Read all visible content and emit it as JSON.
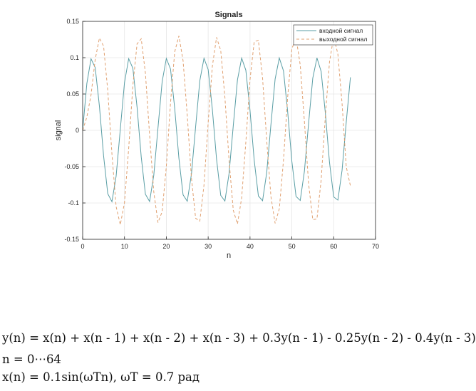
{
  "chart_data": {
    "type": "line",
    "title": "Signals",
    "xlabel": "n",
    "ylabel": "signal",
    "xlim": [
      0,
      70
    ],
    "ylim": [
      -0.15,
      0.15
    ],
    "xticks": [
      0,
      10,
      20,
      30,
      40,
      50,
      60,
      70
    ],
    "xtick_labels": [
      "0",
      "10",
      "20",
      "30",
      "40",
      "50",
      "60",
      "70"
    ],
    "yticks": [
      0.15,
      0.1,
      0.05,
      0,
      -0.05,
      -0.1,
      -0.15
    ],
    "ytick_labels": [
      "0.15",
      "0.1",
      "0.05",
      "0",
      "-0.05",
      "-0.1",
      "-0.15"
    ],
    "grid": true,
    "legend_position": "top-right",
    "x": [
      0,
      1,
      2,
      3,
      4,
      5,
      6,
      7,
      8,
      9,
      10,
      11,
      12,
      13,
      14,
      15,
      16,
      17,
      18,
      19,
      20,
      21,
      22,
      23,
      24,
      25,
      26,
      27,
      28,
      29,
      30,
      31,
      32,
      33,
      34,
      35,
      36,
      37,
      38,
      39,
      40,
      41,
      42,
      43,
      44,
      45,
      46,
      47,
      48,
      49,
      50,
      51,
      52,
      53,
      54,
      55,
      56,
      57,
      58,
      59,
      60,
      61,
      62,
      63,
      64
    ],
    "series": [
      {
        "name": "входной сигнал",
        "color": "#5a9ea5",
        "dash": "solid",
        "values": [
          0,
          0.0644,
          0.0985,
          0.0863,
          0.0335,
          -0.035,
          -0.0872,
          -0.0982,
          -0.0631,
          0.0016,
          0.0657,
          0.0987,
          0.0854,
          0.032,
          -0.0366,
          -0.088,
          -0.0979,
          -0.0618,
          0.0032,
          0.067,
          0.099,
          0.0845,
          0.0305,
          -0.0381,
          -0.0888,
          -0.0976,
          -0.0604,
          0.0048,
          0.0682,
          0.0992,
          0.0837,
          0.0289,
          -0.0396,
          -0.0895,
          -0.0973,
          -0.0591,
          0.0064,
          0.0694,
          0.0994,
          0.0828,
          0.0274,
          -0.0411,
          -0.0903,
          -0.0969,
          -0.0578,
          0.008,
          0.0706,
          0.0996,
          0.0819,
          0.0258,
          -0.0426,
          -0.091,
          -0.0965,
          -0.0565,
          0.0096,
          0.0718,
          0.0997,
          0.081,
          0.0243,
          -0.0441,
          -0.0917,
          -0.0961,
          -0.0551,
          0.0112,
          0.073
        ]
      },
      {
        "name": "выходной сигнал",
        "color": "#e0a070",
        "dash": "dashed",
        "values": [
          0,
          0.0182,
          0.0486,
          0.0977,
          0.127,
          0.116,
          0.0547,
          -0.0326,
          -0.105,
          -0.13,
          -0.0995,
          -0.0248,
          0.0618,
          0.119,
          0.126,
          0.0786,
          -0.0063,
          -0.0847,
          -0.127,
          -0.112,
          -0.0496,
          0.0378,
          0.108,
          0.13,
          0.096,
          0.0205,
          -0.0658,
          -0.121,
          -0.125,
          -0.0754,
          0.0105,
          0.0882,
          0.128,
          0.11,
          0.0454,
          -0.0418,
          -0.11,
          -0.129,
          -0.093,
          -0.0164,
          0.0697,
          0.122,
          0.124,
          0.072,
          -0.0147,
          -0.0912,
          -0.128,
          -0.108,
          -0.0412,
          0.0458,
          0.112,
          0.128,
          0.09,
          0.0123,
          -0.0734,
          -0.123,
          -0.122,
          -0.0686,
          0.0189,
          0.0941,
          0.129,
          0.105,
          0.037,
          -0.05,
          -0.0765
        ]
      }
    ]
  },
  "formulas": {
    "line1": "y(n) = x(n) + x(n - 1) + x(n - 2) + x(n - 3) + 0.3y(n - 1) - 0.25y(n - 2) - 0.4y(n - 3)",
    "line2": "n = 0⋯64",
    "line3": "x(n) = 0.1sin(ωTn),  ωT = 0.7 рад"
  }
}
